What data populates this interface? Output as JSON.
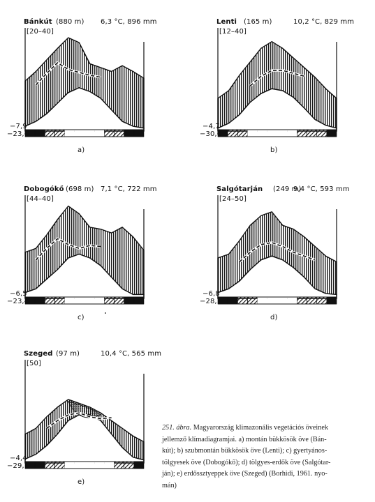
{
  "figure": {
    "diagrams": [
      {
        "id": "a",
        "station": "Bánkút",
        "elevation": "(880 m)",
        "climate": "6,3 °C, 896 mm",
        "range": "[20–40]",
        "min_temp": "−7,9",
        "abs_min": "−23,6",
        "label": "a)",
        "top_curve": [
          0.52,
          0.62,
          0.74,
          0.86,
          0.97,
          0.92,
          0.7,
          0.66,
          0.62,
          0.68,
          0.62,
          0.55
        ],
        "bottom_curve": [
          0.05,
          0.1,
          0.18,
          0.29,
          0.4,
          0.45,
          0.41,
          0.34,
          0.22,
          0.1,
          0.05,
          0.03
        ],
        "dashed": [
          [
            1,
            0.48
          ],
          [
            2,
            0.6
          ],
          [
            3,
            0.71
          ],
          [
            4,
            0.64
          ],
          [
            5,
            0.61
          ],
          [
            6,
            0.58
          ],
          [
            7,
            0.56
          ]
        ],
        "bar_pattern": [
          "black",
          "black",
          "hatch",
          "hatch",
          "white",
          "white",
          "white",
          "white",
          "hatch",
          "hatch",
          "black",
          "black"
        ],
        "dot_region": false
      },
      {
        "id": "b",
        "station": "Lenti",
        "elevation": "(165 m)",
        "climate": "10,2 °C, 829 mm",
        "range": "[12–40]",
        "min_temp": "−4,7",
        "abs_min": "−30,0",
        "label": "b)",
        "top_curve": [
          0.34,
          0.42,
          0.58,
          0.72,
          0.86,
          0.93,
          0.86,
          0.76,
          0.66,
          0.56,
          0.44,
          0.34
        ],
        "bottom_curve": [
          0.03,
          0.08,
          0.17,
          0.3,
          0.39,
          0.44,
          0.42,
          0.35,
          0.24,
          0.12,
          0.06,
          0.03
        ],
        "dashed": [
          [
            3,
            0.47
          ],
          [
            4,
            0.57
          ],
          [
            5,
            0.63
          ],
          [
            6,
            0.63
          ],
          [
            7,
            0.6
          ],
          [
            8,
            0.57
          ]
        ],
        "bar_pattern": [
          "black",
          "hatch",
          "hatch",
          "white",
          "white",
          "white",
          "white",
          "white",
          "hatch",
          "hatch",
          "hatch",
          "black"
        ],
        "dot_region": false
      },
      {
        "id": "c",
        "station": "Dobogókő",
        "elevation": "(698 m)",
        "climate": "7,1 °C, 722 mm",
        "range": "[44–40]",
        "min_temp": "−6,5",
        "abs_min": "−23,4",
        "label": "c)",
        "top_curve": [
          0.48,
          0.52,
          0.66,
          0.82,
          0.96,
          0.88,
          0.74,
          0.72,
          0.68,
          0.74,
          0.64,
          0.5
        ],
        "bottom_curve": [
          0.06,
          0.1,
          0.2,
          0.3,
          0.42,
          0.46,
          0.42,
          0.34,
          0.22,
          0.1,
          0.04,
          0.04
        ],
        "dashed": [
          [
            1,
            0.4
          ],
          [
            2,
            0.52
          ],
          [
            3,
            0.62
          ],
          [
            4,
            0.56
          ],
          [
            5,
            0.52
          ],
          [
            6,
            0.55
          ],
          [
            7,
            0.54
          ]
        ],
        "bar_pattern": [
          "black",
          "black",
          "hatch",
          "hatch",
          "white",
          "white",
          "white",
          "white",
          "hatch",
          "hatch",
          "black",
          "black"
        ],
        "dot_region": false
      },
      {
        "id": "d",
        "station": "Salgótarján",
        "elevation": "(249 m)",
        "climate": "9,4 °C, 593 mm",
        "range": "[24–50]",
        "min_temp": "−6,8",
        "abs_min": "−28,1",
        "label": "d)",
        "top_curve": [
          0.42,
          0.46,
          0.6,
          0.76,
          0.86,
          0.9,
          0.76,
          0.72,
          0.64,
          0.54,
          0.44,
          0.38
        ],
        "bottom_curve": [
          0.06,
          0.1,
          0.18,
          0.3,
          0.4,
          0.44,
          0.4,
          0.32,
          0.22,
          0.1,
          0.05,
          0.04
        ],
        "dashed": [
          [
            2,
            0.38
          ],
          [
            3,
            0.48
          ],
          [
            4,
            0.56
          ],
          [
            5,
            0.58
          ],
          [
            6,
            0.54
          ],
          [
            7,
            0.48
          ],
          [
            8,
            0.44
          ],
          [
            9,
            0.4
          ]
        ],
        "bar_pattern": [
          "black",
          "black",
          "hatch",
          "hatch",
          "white",
          "white",
          "white",
          "white",
          "hatch",
          "hatch",
          "hatch",
          "black"
        ],
        "dot_region": false
      },
      {
        "id": "e",
        "station": "Szeged",
        "elevation": "(97 m)",
        "climate": "10,4 °C, 565 mm",
        "range": "[50]",
        "min_temp": "−4,4",
        "abs_min": "−29,1",
        "label": "e)",
        "top_curve": [
          0.3,
          0.36,
          0.48,
          0.58,
          0.66,
          0.62,
          0.58,
          0.52,
          0.44,
          0.36,
          0.28,
          0.22
        ],
        "bottom_curve": [
          0.04,
          0.09,
          0.18,
          0.3,
          0.44,
          0.5,
          0.5,
          0.44,
          0.3,
          0.16,
          0.06,
          0.03
        ],
        "dashed": [
          [
            2,
            0.36
          ],
          [
            3,
            0.44
          ],
          [
            4,
            0.5
          ],
          [
            5,
            0.52
          ],
          [
            6,
            0.48
          ],
          [
            7,
            0.46
          ],
          [
            8,
            0.47
          ]
        ],
        "bar_pattern": [
          "black",
          "black",
          "hatch",
          "hatch",
          "white",
          "white",
          "white",
          "white",
          "white",
          "hatch",
          "hatch",
          "black"
        ],
        "dot_region": true
      }
    ],
    "caption": {
      "number": "251.",
      "word": "ábra.",
      "lines": [
        "Magyarország klimazonális vegetációs öveinek",
        "jellemző klímadiagramjai. a) montán bükkösök öve (Bán-",
        "kút); b) szubmontán bükkösök öve (Lenti); c) gyertyános-",
        "tölgyesek öve (Dobogókő); d) tölgyes-erdők öve (Salgótar-",
        "ján); e) erdőssztyeppek öve (Szeged) (Borhidi, 1961. nyo-",
        "mán)"
      ]
    }
  }
}
